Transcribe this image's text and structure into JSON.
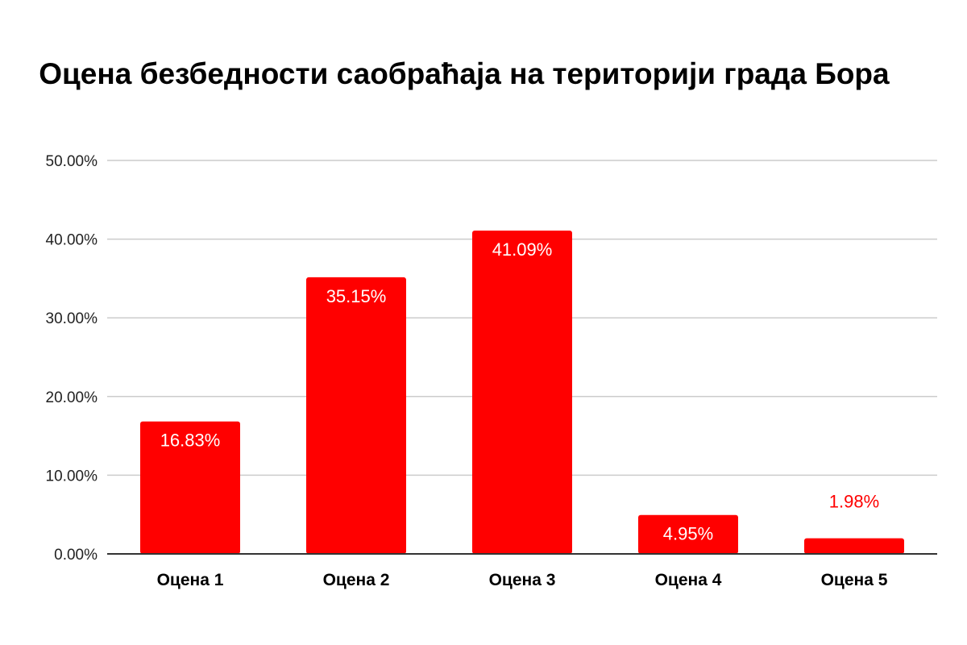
{
  "chart_data": {
    "type": "bar",
    "title": " Оцена безбедности саобраћаја на територији града Бора",
    "xlabel": "",
    "ylabel": "",
    "categories": [
      "Оцена 1",
      "Оцена 2",
      "Оцена 3",
      "Оцена 4",
      "Оцена 5"
    ],
    "values": [
      16.83,
      35.15,
      41.09,
      4.95,
      1.98
    ],
    "data_labels": [
      "16.83%",
      "35.15%",
      "41.09%",
      "4.95%",
      "1.98%"
    ],
    "ylim": [
      0,
      50
    ],
    "yticks": [
      0,
      10,
      20,
      30,
      40,
      50
    ],
    "ytick_labels": [
      "0.00%",
      "10.00%",
      "20.00%",
      "30.00%",
      "40.00%",
      "50.00%"
    ],
    "grid": true,
    "legend": "none",
    "colors": {
      "bar": "#ff0000",
      "label_inside": "#ffffff",
      "label_outside": "#ff0000",
      "grid": "#cccccc",
      "axis": "#333333"
    }
  }
}
